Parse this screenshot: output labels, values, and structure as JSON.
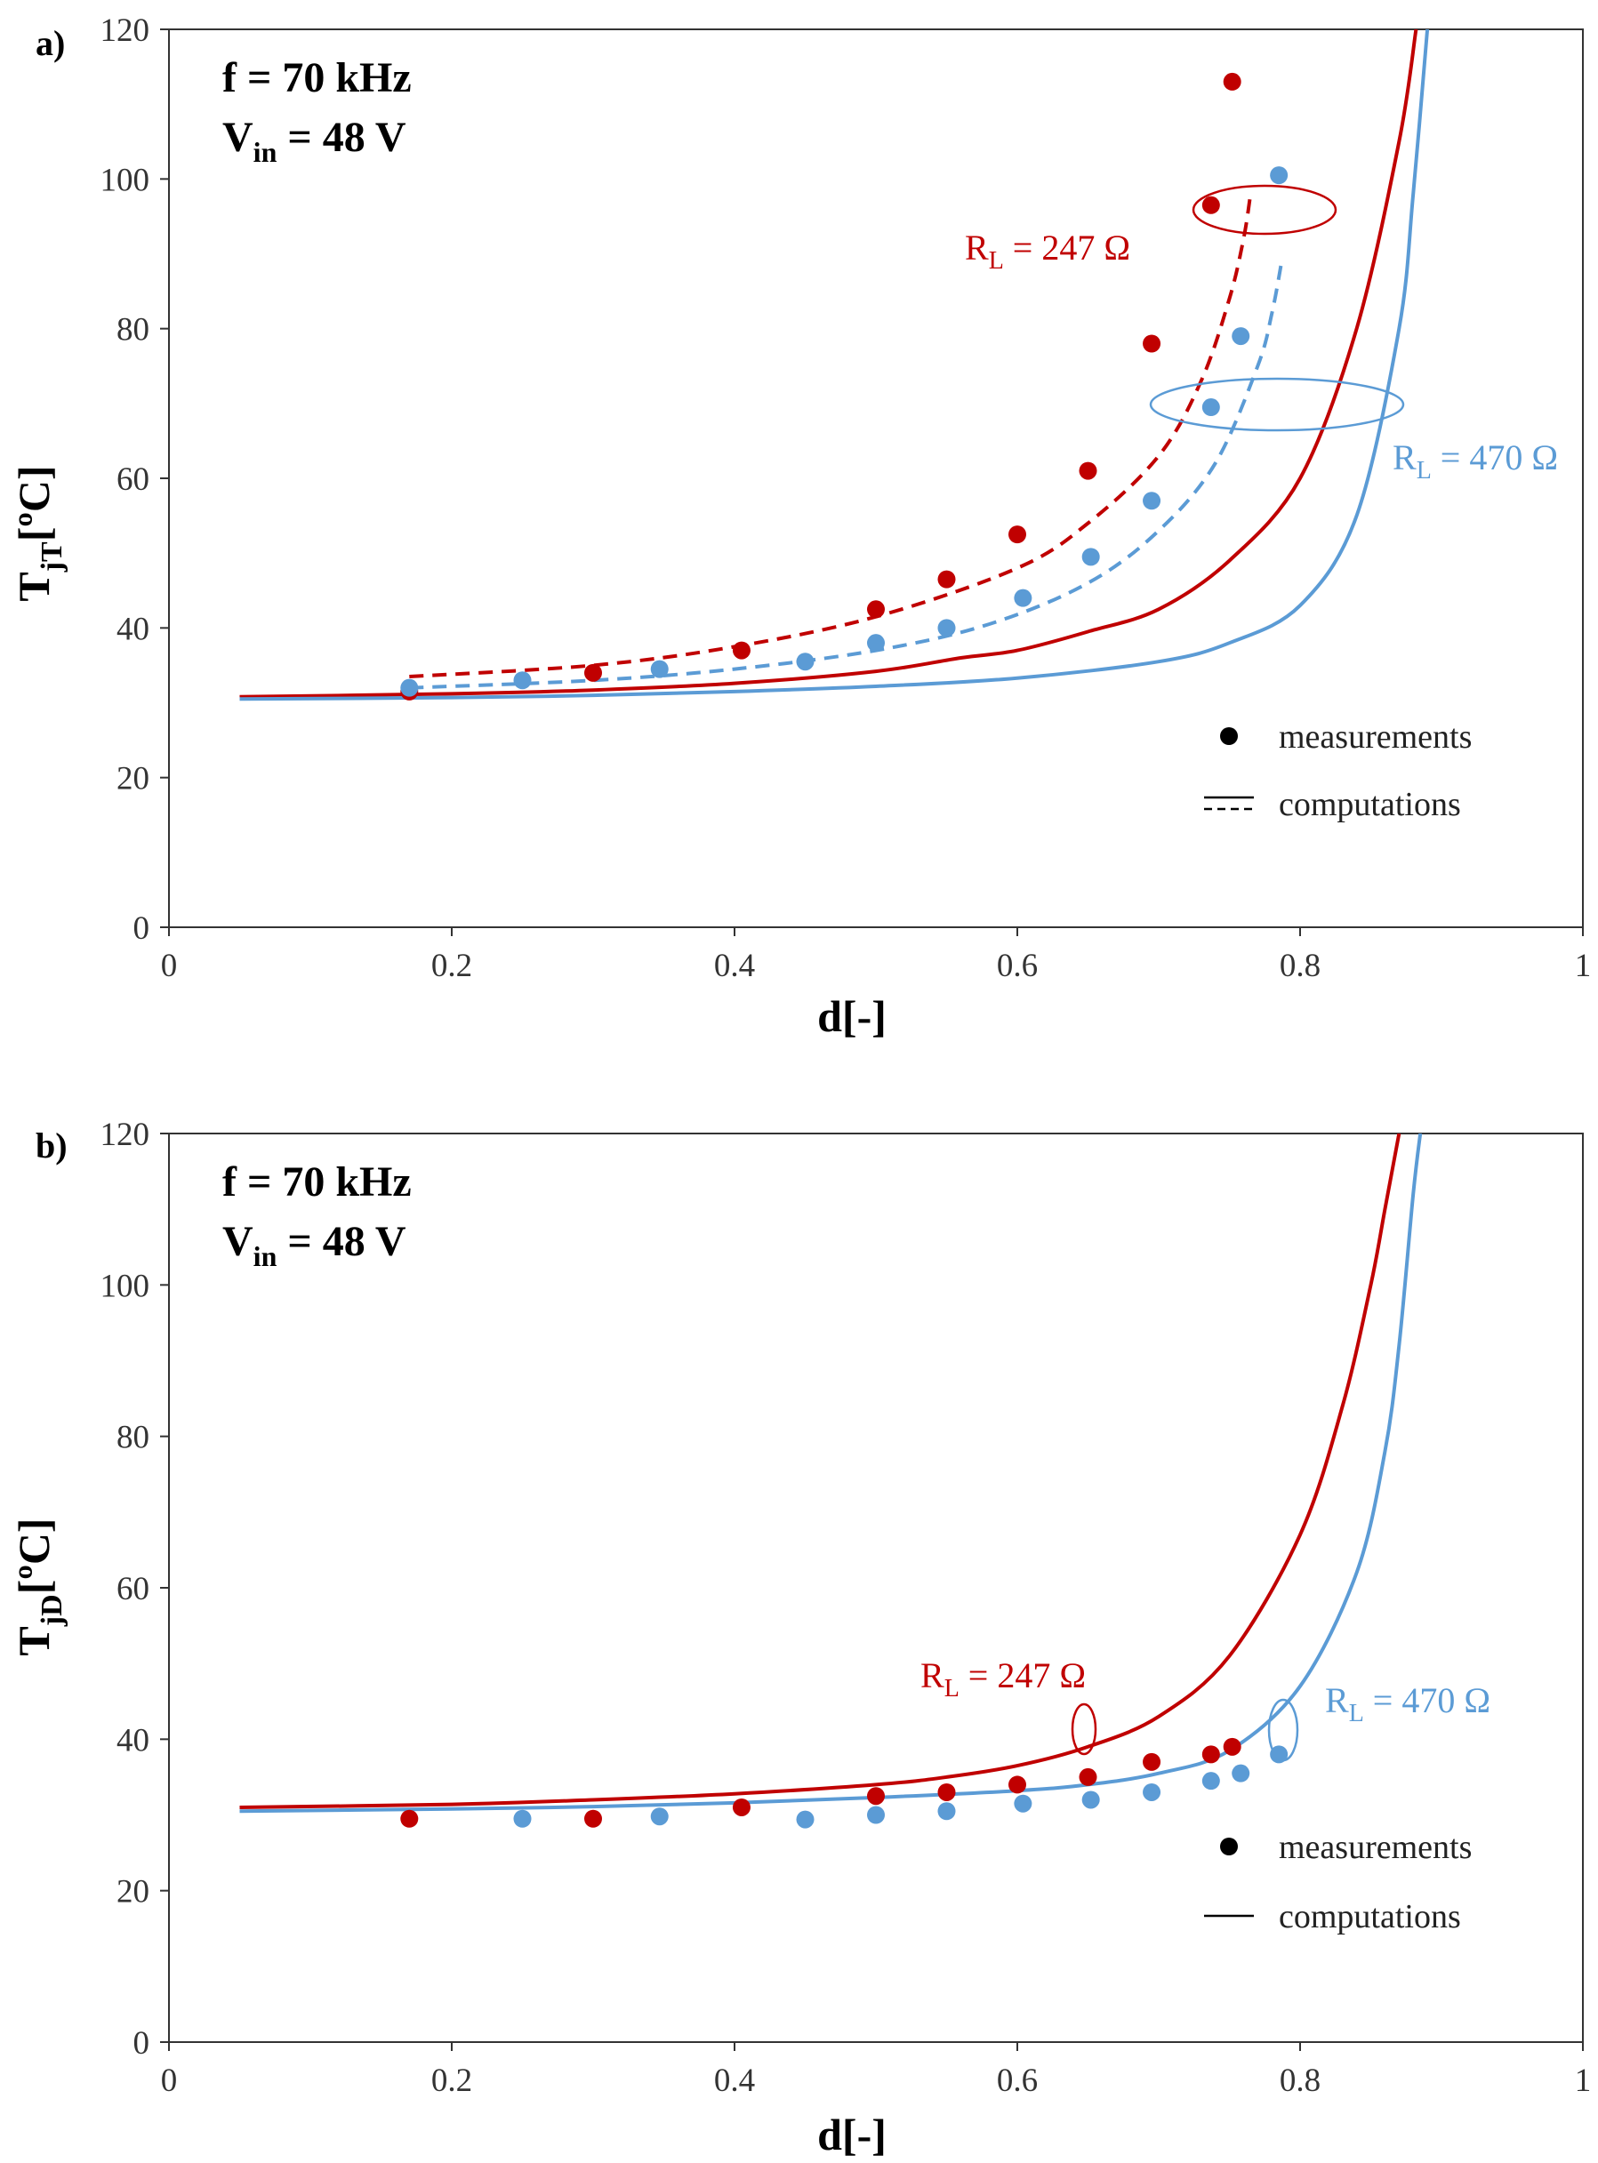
{
  "colors": {
    "red": "#c00000",
    "blue": "#5b9bd5",
    "axis": "#333333"
  },
  "chart_data": [
    {
      "panel_label": "a)",
      "type": "scatter+line",
      "xlabel": "d[-]",
      "ylabel_main": "T",
      "ylabel_sub": "jT",
      "ylabel_unit": "[ºC]",
      "xlim": [
        0,
        1
      ],
      "ylim": [
        0,
        120
      ],
      "xticks": [
        "0",
        "0.2",
        "0.4",
        "0.6",
        "0.8",
        "1"
      ],
      "yticks": [
        "0",
        "20",
        "40",
        "60",
        "80",
        "100",
        "120"
      ],
      "conditions": {
        "f": "f = 70 kHz",
        "vin_main": "V",
        "vin_sub": "in",
        "vin_rest": " = 48 V"
      },
      "legend": {
        "measurements": "measurements",
        "computations": "computations"
      },
      "series": [
        {
          "name": "R_L = 247 Ω",
          "label_main": "R",
          "label_sub": "L",
          "label_rest": " = 247 Ω",
          "color": "red",
          "measurements": [
            [
              0.17,
              31.5
            ],
            [
              0.3,
              34
            ],
            [
              0.405,
              37
            ],
            [
              0.5,
              42.5
            ],
            [
              0.55,
              46.5
            ],
            [
              0.6,
              52.5
            ],
            [
              0.65,
              61
            ],
            [
              0.695,
              78
            ],
            [
              0.737,
              96.5
            ],
            [
              0.752,
              113
            ]
          ],
          "computation_dashed": [
            [
              0.17,
              33.5
            ],
            [
              0.3,
              35
            ],
            [
              0.4,
              37.5
            ],
            [
              0.5,
              41.5
            ],
            [
              0.6,
              48
            ],
            [
              0.65,
              54
            ],
            [
              0.7,
              63
            ],
            [
              0.73,
              73
            ],
            [
              0.75,
              84
            ],
            [
              0.76,
              92
            ],
            [
              0.765,
              98
            ]
          ],
          "computation_solid": [
            [
              0.05,
              30.8
            ],
            [
              0.2,
              31.2
            ],
            [
              0.3,
              31.7
            ],
            [
              0.4,
              32.6
            ],
            [
              0.5,
              34.2
            ],
            [
              0.56,
              36
            ],
            [
              0.6,
              37
            ],
            [
              0.65,
              39.5
            ],
            [
              0.7,
              42.5
            ],
            [
              0.75,
              49
            ],
            [
              0.8,
              60
            ],
            [
              0.84,
              80
            ],
            [
              0.87,
              105
            ],
            [
              0.882,
              120
            ]
          ]
        },
        {
          "name": "R_L = 470 Ω",
          "label_main": "R",
          "label_sub": "L",
          "label_rest": " = 470 Ω",
          "color": "blue",
          "measurements": [
            [
              0.17,
              32
            ],
            [
              0.25,
              33
            ],
            [
              0.347,
              34.5
            ],
            [
              0.45,
              35.5
            ],
            [
              0.5,
              38
            ],
            [
              0.55,
              40
            ],
            [
              0.604,
              44
            ],
            [
              0.652,
              49.5
            ],
            [
              0.695,
              57
            ],
            [
              0.737,
              69.5
            ],
            [
              0.758,
              79
            ],
            [
              0.785,
              100.5
            ]
          ],
          "computation_dashed": [
            [
              0.17,
              32
            ],
            [
              0.3,
              33
            ],
            [
              0.4,
              34.5
            ],
            [
              0.5,
              37
            ],
            [
              0.58,
              40.5
            ],
            [
              0.65,
              46
            ],
            [
              0.7,
              53
            ],
            [
              0.74,
              62
            ],
            [
              0.77,
              75
            ],
            [
              0.78,
              82
            ],
            [
              0.787,
              89
            ]
          ],
          "computation_solid": [
            [
              0.05,
              30.5
            ],
            [
              0.2,
              30.7
            ],
            [
              0.3,
              31
            ],
            [
              0.4,
              31.5
            ],
            [
              0.5,
              32.2
            ],
            [
              0.6,
              33.3
            ],
            [
              0.7,
              35.5
            ],
            [
              0.75,
              38
            ],
            [
              0.8,
              43
            ],
            [
              0.84,
              55
            ],
            [
              0.87,
              80
            ],
            [
              0.88,
              98
            ],
            [
              0.89,
              120
            ]
          ]
        }
      ]
    },
    {
      "panel_label": "b)",
      "type": "scatter+line",
      "xlabel": "d[-]",
      "ylabel_main": "T",
      "ylabel_sub": "jD",
      "ylabel_unit": "[ºC]",
      "xlim": [
        0,
        1
      ],
      "ylim": [
        0,
        120
      ],
      "xticks": [
        "0",
        "0.2",
        "0.4",
        "0.6",
        "0.8",
        "1"
      ],
      "yticks": [
        "0",
        "20",
        "40",
        "60",
        "80",
        "100",
        "120"
      ],
      "conditions": {
        "f": "f = 70 kHz",
        "vin_main": "V",
        "vin_sub": "in",
        "vin_rest": " = 48 V"
      },
      "legend": {
        "measurements": "measurements",
        "computations": "computations"
      },
      "series": [
        {
          "name": "R_L = 247 Ω",
          "label_main": "R",
          "label_sub": "L",
          "label_rest": " = 247 Ω",
          "color": "red",
          "measurements": [
            [
              0.17,
              29.5
            ],
            [
              0.3,
              29.5
            ],
            [
              0.405,
              31
            ],
            [
              0.5,
              32.5
            ],
            [
              0.55,
              33
            ],
            [
              0.6,
              34
            ],
            [
              0.65,
              35
            ],
            [
              0.695,
              37
            ],
            [
              0.737,
              38
            ],
            [
              0.752,
              39
            ]
          ],
          "computation_solid": [
            [
              0.05,
              31
            ],
            [
              0.2,
              31.4
            ],
            [
              0.3,
              32
            ],
            [
              0.4,
              32.8
            ],
            [
              0.5,
              34
            ],
            [
              0.55,
              35
            ],
            [
              0.6,
              36.5
            ],
            [
              0.65,
              39
            ],
            [
              0.7,
              43
            ],
            [
              0.75,
              51
            ],
            [
              0.8,
              67
            ],
            [
              0.83,
              84
            ],
            [
              0.85,
              100
            ],
            [
              0.86,
              110
            ],
            [
              0.87,
              120
            ]
          ]
        },
        {
          "name": "R_L = 470 Ω",
          "label_main": "R",
          "label_sub": "L",
          "label_rest": " = 470 Ω",
          "color": "blue",
          "measurements": [
            [
              0.25,
              29.5
            ],
            [
              0.347,
              29.8
            ],
            [
              0.45,
              29.4
            ],
            [
              0.5,
              30
            ],
            [
              0.55,
              30.5
            ],
            [
              0.604,
              31.5
            ],
            [
              0.652,
              32
            ],
            [
              0.695,
              33
            ],
            [
              0.737,
              34.5
            ],
            [
              0.758,
              35.5
            ],
            [
              0.785,
              38
            ]
          ],
          "computation_solid": [
            [
              0.05,
              30.5
            ],
            [
              0.2,
              30.8
            ],
            [
              0.3,
              31.1
            ],
            [
              0.4,
              31.6
            ],
            [
              0.5,
              32.3
            ],
            [
              0.6,
              33.2
            ],
            [
              0.65,
              34
            ],
            [
              0.7,
              35.5
            ],
            [
              0.75,
              38.5
            ],
            [
              0.8,
              47
            ],
            [
              0.84,
              62
            ],
            [
              0.86,
              78
            ],
            [
              0.87,
              92
            ],
            [
              0.88,
              112
            ],
            [
              0.885,
              120
            ]
          ]
        }
      ]
    }
  ]
}
